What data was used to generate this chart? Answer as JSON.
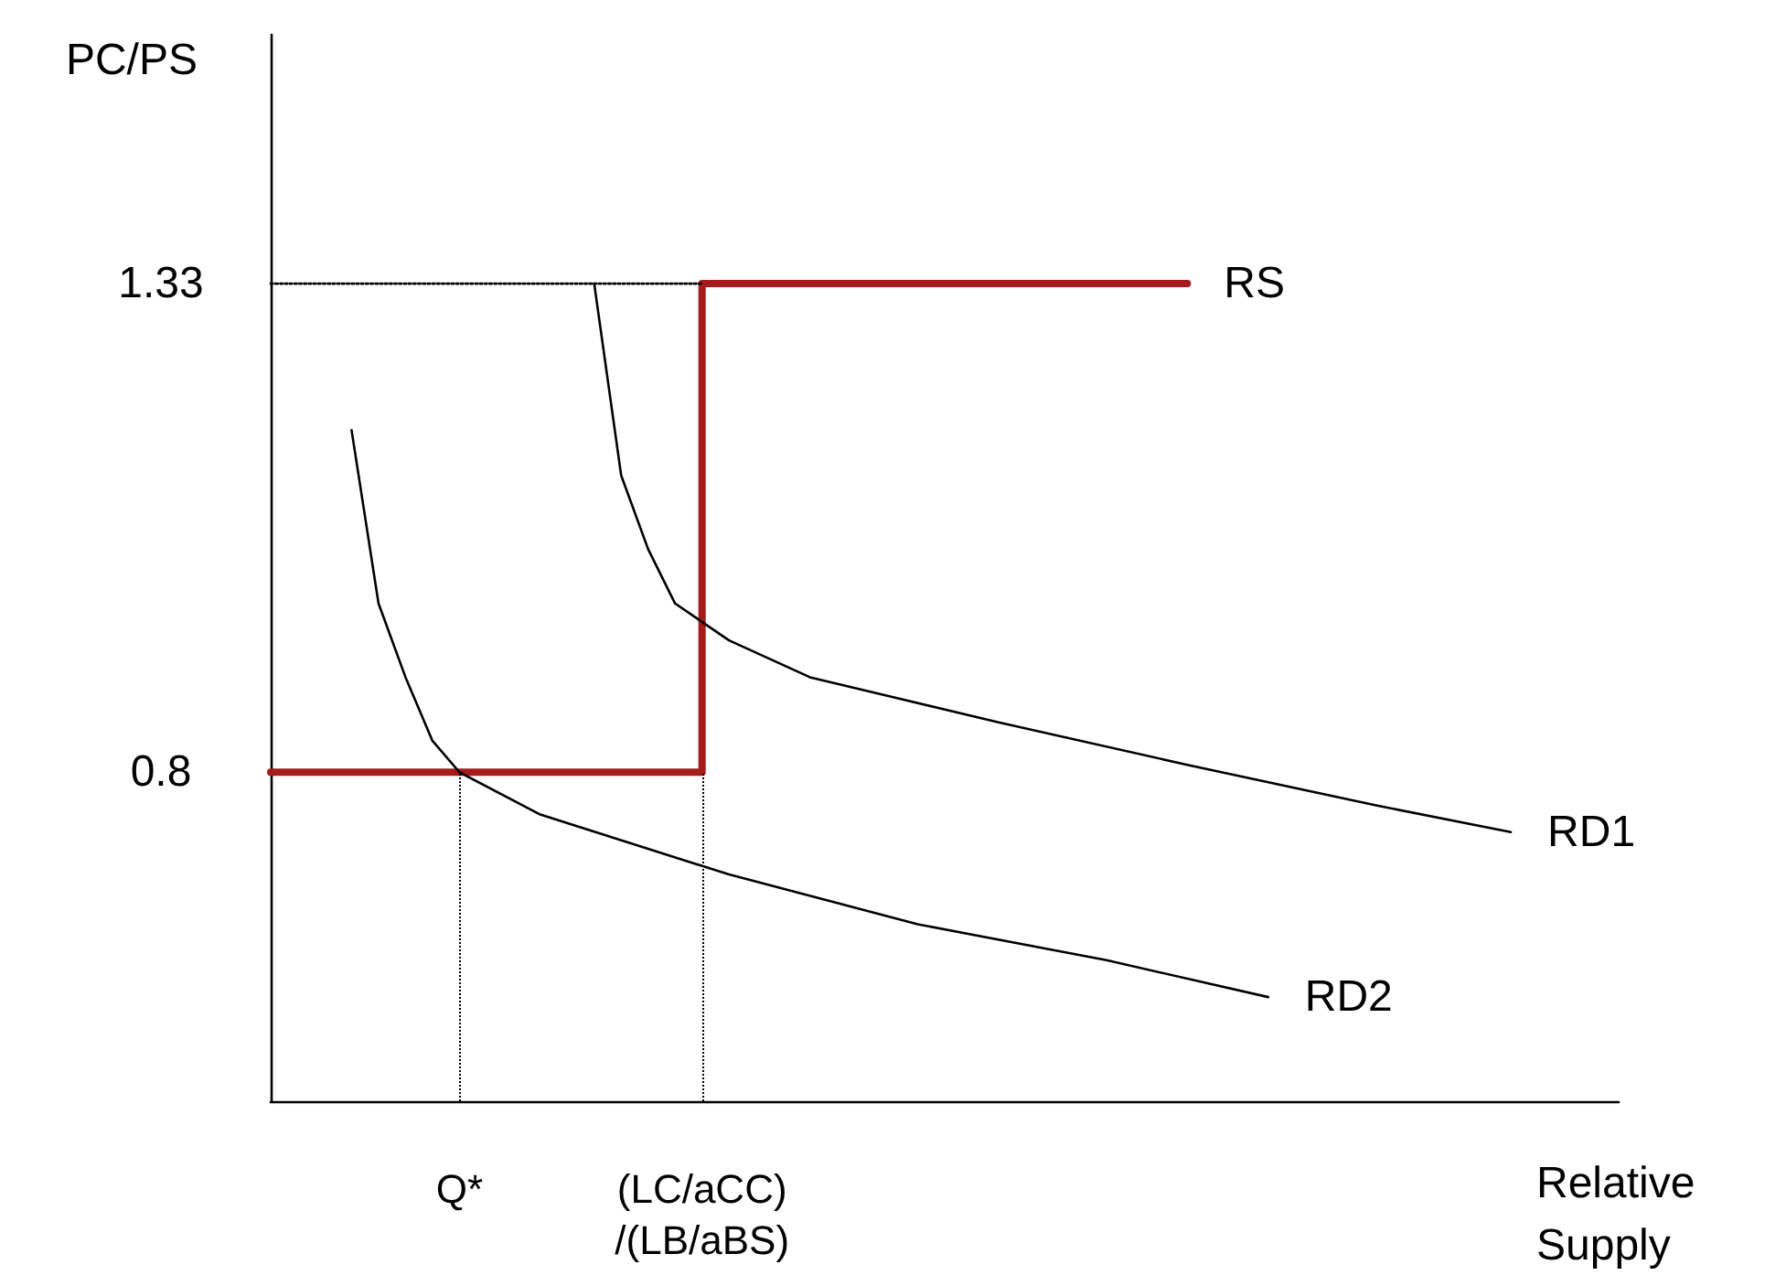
{
  "chart_data": {
    "type": "line",
    "xlabel": "Relative\nSupply",
    "ylabel": "PC/PS",
    "categories": [
      null,
      null,
      null,
      null,
      null,
      null,
      null,
      "Q*",
      null,
      null,
      null,
      null,
      null,
      null,
      null,
      null,
      "(LC/aCC)\n/(LB/aBS)",
      null,
      null,
      null,
      null,
      null,
      null,
      null,
      null,
      null,
      null,
      null,
      null,
      null,
      null,
      null,
      null,
      null,
      null,
      null,
      null,
      null,
      null,
      null,
      null,
      null,
      null,
      null,
      null,
      null,
      null,
      null,
      null,
      null,
      null
    ],
    "ylim": [
      0.443,
      1.6
    ],
    "yticks": [
      0.8,
      1.33
    ],
    "grid": false,
    "legend": false,
    "marker": "none",
    "ref_lines": [
      {
        "axis": "x",
        "value": "Q*",
        "color": "#000000",
        "line_style": "dotted"
      },
      {
        "axis": "x",
        "value": "(LC/aCC)\n/(LB/aBS)",
        "color": "#000000",
        "line_style": "dotted"
      }
    ],
    "series": [
      {
        "name": "RS",
        "type": "step",
        "color": "#a61c1c",
        "values": [
          0.8,
          0.8,
          0.8,
          0.8,
          0.8,
          0.8,
          0.8,
          0.8,
          0.8,
          0.8,
          0.8,
          0.8,
          0.8,
          0.8,
          0.8,
          0.8,
          0.8,
          1.33,
          1.33,
          1.33,
          1.33,
          1.33,
          1.33,
          1.33,
          1.33,
          1.33,
          1.33,
          1.33,
          1.33,
          1.33,
          1.33,
          1.33,
          1.33,
          1.33,
          1.33,
          null,
          null,
          null,
          null,
          null,
          null,
          null,
          null,
          null,
          null,
          null,
          null,
          null,
          null,
          null,
          null
        ]
      },
      {
        "name": "RD1",
        "color": "#000000",
        "values": [
          null,
          null,
          null,
          null,
          null,
          null,
          null,
          null,
          null,
          null,
          null,
          null,
          1.33,
          1.122,
          1.042,
          0.983,
          null,
          0.943,
          null,
          null,
          0.903,
          null,
          null,
          null,
          null,
          null,
          null,
          0.854,
          null,
          null,
          null,
          null,
          null,
          null,
          0.808,
          null,
          null,
          null,
          null,
          null,
          null,
          0.764,
          null,
          null,
          null,
          null,
          0.735,
          null,
          null,
          null,
          null
        ]
      },
      {
        "name": "RD2",
        "color": "#000000",
        "values": [
          null,
          null,
          null,
          1.171,
          0.983,
          0.903,
          0.834,
          0.8,
          null,
          null,
          0.754,
          null,
          null,
          null,
          null,
          null,
          null,
          0.689,
          null,
          null,
          null,
          null,
          null,
          null,
          0.635,
          null,
          null,
          null,
          null,
          null,
          null,
          0.596,
          null,
          null,
          null,
          null,
          null,
          0.556,
          null,
          null,
          null,
          null,
          null,
          null,
          null,
          null,
          null,
          null,
          null,
          null,
          null
        ]
      },
      {
        "color": "#000000",
        "line_style": "dotted",
        "values": [
          1.33,
          1.33,
          1.33,
          1.33,
          1.33,
          1.33,
          1.33,
          1.33,
          1.33,
          1.33,
          1.33,
          1.33,
          1.33,
          1.33,
          1.33,
          1.33,
          1.33,
          null,
          null,
          null,
          null,
          null,
          null,
          null,
          null,
          null,
          null,
          null,
          null,
          null,
          null,
          null,
          null,
          null,
          null,
          null,
          null,
          null,
          null,
          null,
          null,
          null,
          null,
          null,
          null,
          null,
          null,
          null,
          null,
          null,
          null
        ]
      }
    ]
  }
}
